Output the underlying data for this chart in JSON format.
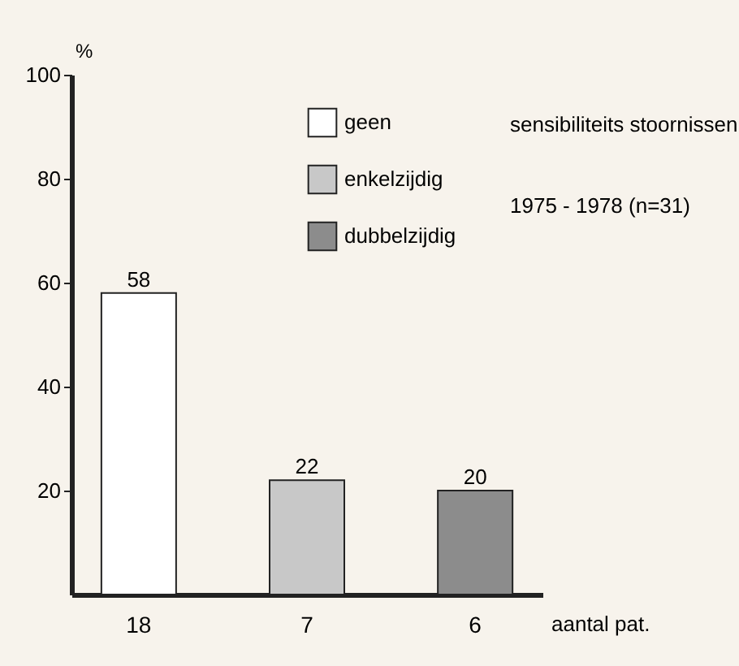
{
  "chart_data": {
    "type": "bar",
    "categories": [
      "18",
      "7",
      "6"
    ],
    "series": [
      {
        "name": "geen",
        "color": "#ffffff",
        "values": [
          58,
          null,
          null
        ]
      },
      {
        "name": "enkelzijdig",
        "color": "#c8c8c8",
        "values": [
          null,
          22,
          null
        ]
      },
      {
        "name": "dubbelzijdig",
        "color": "#8c8c8c",
        "values": [
          null,
          null,
          20
        ]
      }
    ],
    "ylim": [
      0,
      100
    ],
    "yticks": [
      20,
      40,
      60,
      80,
      100
    ],
    "ylabel": "%",
    "xlabel": "aantal pat.",
    "data_labels": true,
    "legend": "top right",
    "annotations": [
      "sensibiliteits stoornissen",
      "1975 - 1978 (n=31)"
    ]
  }
}
